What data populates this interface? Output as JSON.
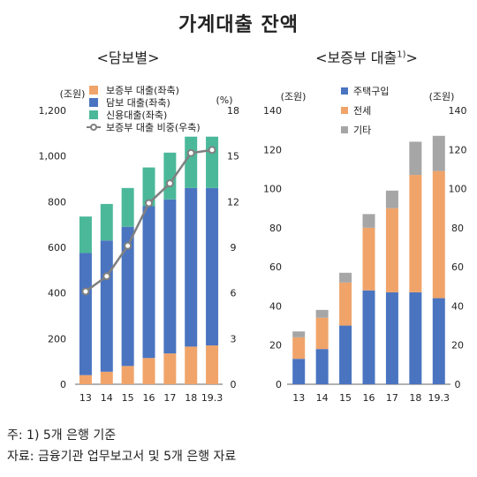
{
  "title": "가계대출 잔액",
  "chart_data": [
    {
      "type": "bar",
      "subtitle": "<담보별>",
      "categories": [
        "13",
        "14",
        "15",
        "16",
        "17",
        "18",
        "19.3"
      ],
      "y_left_unit": "(조원)",
      "y_right_unit": "(%)",
      "y_left_ticks": [
        "0",
        "200",
        "400",
        "600",
        "800",
        "1,000",
        "1,200"
      ],
      "y_right_ticks": [
        "0",
        "3",
        "6",
        "9",
        "12",
        "15",
        "18"
      ],
      "ylim": [
        0,
        1200
      ],
      "ylim_right": [
        0,
        18
      ],
      "stacked": true,
      "legend_position": "top-left",
      "series": [
        {
          "name": "보증부 대출(좌축)",
          "color": "#f0a46a",
          "values": [
            40,
            55,
            80,
            115,
            135,
            165,
            170
          ]
        },
        {
          "name": "담보 대출(좌축)",
          "color": "#4a74c0",
          "values": [
            535,
            575,
            610,
            665,
            675,
            695,
            690
          ]
        },
        {
          "name": "신용대출(좌축)",
          "color": "#4bb89a",
          "values": [
            160,
            160,
            170,
            170,
            205,
            225,
            225
          ]
        }
      ],
      "line_series": {
        "name": "보증부 대출 비중(우축)",
        "color": "#808080",
        "axis": "right",
        "values": [
          6.1,
          7.1,
          9.1,
          11.9,
          13.2,
          15.2,
          15.4
        ]
      }
    },
    {
      "type": "bar",
      "subtitle": "<보증부 대출",
      "subtitle_sup": "1)",
      "subtitle_close": ">",
      "categories": [
        "13",
        "14",
        "15",
        "16",
        "17",
        "18",
        "19.3"
      ],
      "y_left_unit": "(조원)",
      "y_right_unit": "(조원)",
      "y_ticks": [
        "0",
        "20",
        "40",
        "60",
        "80",
        "100",
        "120",
        "140"
      ],
      "ylim": [
        0,
        140
      ],
      "stacked": true,
      "legend_position": "top-left",
      "series": [
        {
          "name": "주택구입",
          "color": "#4a74c0",
          "values": [
            13,
            18,
            30,
            48,
            47,
            47,
            44
          ]
        },
        {
          "name": "전세",
          "color": "#f0a46a",
          "values": [
            11,
            16,
            22,
            32,
            43,
            60,
            65
          ]
        },
        {
          "name": "기타",
          "color": "#a6a6a6",
          "values": [
            3,
            4,
            5,
            7,
            9,
            17,
            18
          ]
        }
      ]
    }
  ],
  "footnote": "주: 1) 5개 은행 기준",
  "source": "자료: 금융기관 업무보고서 및 5개 은행 자료"
}
